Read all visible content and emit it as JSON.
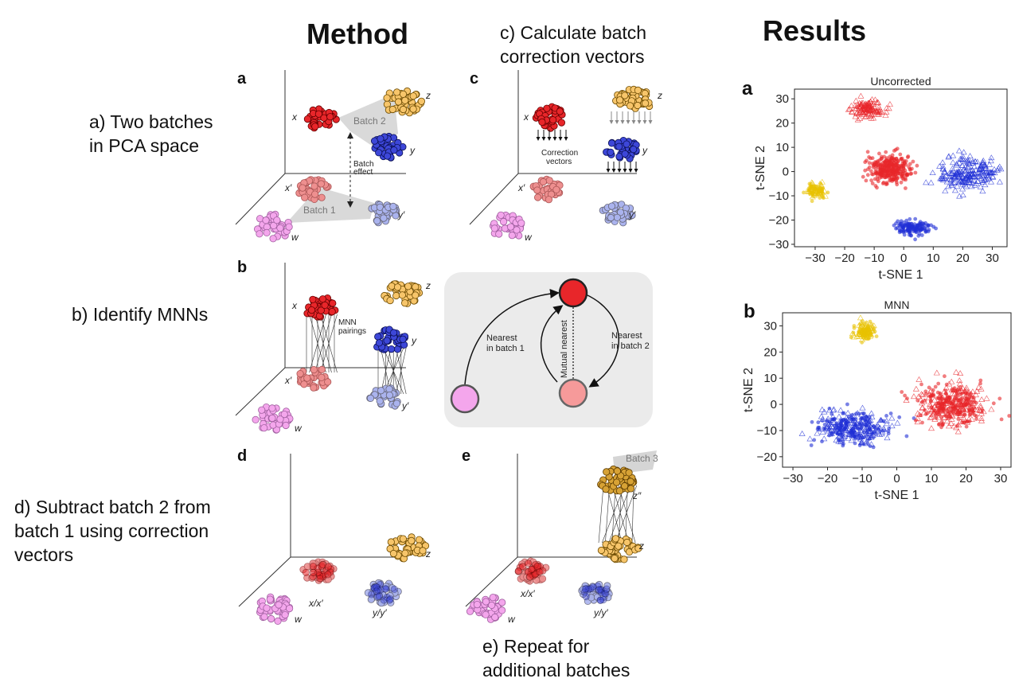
{
  "headings": {
    "method": "Method",
    "results": "Results"
  },
  "steps": {
    "a": [
      "a) Two batches",
      "in PCA space"
    ],
    "b": [
      "b) Identify MNNs"
    ],
    "c": [
      "c) Calculate batch",
      "correction vectors"
    ],
    "d": [
      "d) Subtract batch 2 from",
      "batch 1 using correction",
      "vectors"
    ],
    "e": [
      "e) Repeat for",
      "additional batches"
    ]
  },
  "panel_letters": {
    "a": "a",
    "b": "b",
    "c": "c",
    "d": "d",
    "e": "e",
    "ra": "a",
    "rb": "b"
  },
  "panel_a": {
    "batch2": "Batch 2",
    "batch1": "Batch 1",
    "effect1": "Batch",
    "effect2": "effect",
    "x": "x",
    "z": "z",
    "y": "y",
    "xp": "x′",
    "yp": "y′",
    "w": "w"
  },
  "panel_b": {
    "mnn1": "MNN",
    "mnn2": "pairings",
    "x": "x",
    "z": "z",
    "y": "y",
    "xp": "x′",
    "yp": "y′",
    "w": "w"
  },
  "panel_c": {
    "cv1": "Correction",
    "cv2": "vectors",
    "x": "x",
    "z": "z",
    "y": "y",
    "xp": "x′",
    "yp": "y′",
    "w": "w"
  },
  "panel_d": {
    "z": "z",
    "xx": "x/x′",
    "yy": "y/y′",
    "w": "w"
  },
  "panel_e": {
    "batch3": "Batch 3",
    "zpp": "z″",
    "z": "z",
    "xx": "x/x′",
    "yy": "y/y′",
    "w": "w"
  },
  "mnn_schematic": {
    "nearest1a": "Nearest",
    "nearest1b": "in batch 1",
    "nearest2a": "Nearest",
    "nearest2b": "in batch 2",
    "mutual": "Mutual nearest"
  },
  "colors": {
    "red": "#e8262a",
    "blue": "#1f2fd6",
    "yellow": "#e8c200",
    "orange": "#f7c56a",
    "pink": "#f4a6ec",
    "lightred": "#ee8f8f",
    "lightblue": "#aab3ee",
    "gold": "#d7a235"
  },
  "chart_data": [
    {
      "type": "scatter",
      "title": "Uncorrected",
      "xlabel": "t-SNE 1",
      "ylabel": "t-SNE 2",
      "xlim": [
        -37,
        35
      ],
      "ylim": [
        -31,
        34
      ],
      "xticks": [
        -30,
        -20,
        -10,
        0,
        10,
        20,
        30
      ],
      "yticks": [
        -30,
        -20,
        -10,
        0,
        10,
        20,
        30
      ],
      "clusters": [
        {
          "color": "#e8262a",
          "marker": "triangle",
          "center": [
            -12,
            26
          ],
          "spread": [
            6,
            4
          ],
          "n": 120
        },
        {
          "color": "#e8262a",
          "marker": "circle",
          "center": [
            -5,
            1
          ],
          "spread": [
            8,
            6.5
          ],
          "n": 300
        },
        {
          "color": "#1f2fd6",
          "marker": "triangle",
          "center": [
            22,
            -1
          ],
          "spread": [
            11,
            7
          ],
          "n": 220
        },
        {
          "color": "#1f2fd6",
          "marker": "circle",
          "center": [
            3,
            -23
          ],
          "spread": [
            6,
            3.5
          ],
          "n": 130
        },
        {
          "color": "#e8c200",
          "marker": "mixed",
          "center": [
            -30,
            -8
          ],
          "spread": [
            4.5,
            3.5
          ],
          "n": 90
        }
      ]
    },
    {
      "type": "scatter",
      "title": "MNN",
      "xlabel": "t-SNE 1",
      "ylabel": "t-SNE 2",
      "xlim": [
        -33,
        33
      ],
      "ylim": [
        -24,
        35
      ],
      "xticks": [
        -30,
        -20,
        -10,
        0,
        10,
        20,
        30
      ],
      "yticks": [
        -20,
        -10,
        0,
        10,
        20,
        30
      ],
      "clusters": [
        {
          "color": "#e8c200",
          "marker": "mixed",
          "center": [
            -9,
            28
          ],
          "spread": [
            3.5,
            4
          ],
          "n": 110
        },
        {
          "color": "#1f2fd6",
          "marker": "mixed",
          "center": [
            -13,
            -9
          ],
          "spread": [
            12,
            7
          ],
          "n": 320
        },
        {
          "color": "#e8262a",
          "marker": "mixed",
          "center": [
            16,
            0
          ],
          "spread": [
            11,
            9
          ],
          "n": 380
        }
      ]
    }
  ]
}
